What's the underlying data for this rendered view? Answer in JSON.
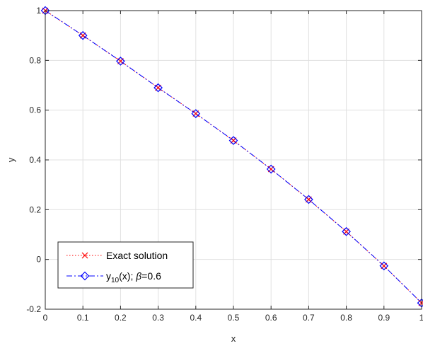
{
  "chart_data": {
    "type": "line",
    "title": "",
    "xlabel": "x",
    "ylabel": "y",
    "xlim": [
      0,
      1
    ],
    "ylim": [
      -0.2,
      1
    ],
    "grid": true,
    "legend_position": "bottom-left",
    "x_ticks": [
      0,
      0.1,
      0.2,
      0.3,
      0.4,
      0.5,
      0.6,
      0.7,
      0.8,
      0.9,
      1
    ],
    "x_tick_labels": [
      "0",
      "0.1",
      "0.2",
      "0.3",
      "0.4",
      "0.5",
      "0.6",
      "0.7",
      "0.8",
      "0.9",
      "1"
    ],
    "y_ticks": [
      -0.2,
      0,
      0.2,
      0.4,
      0.6,
      0.8,
      1
    ],
    "y_tick_labels": [
      "-0.2",
      "0",
      "0.2",
      "0.4",
      "0.6",
      "0.8",
      "1"
    ],
    "x": [
      0,
      0.1,
      0.2,
      0.3,
      0.4,
      0.5,
      0.6,
      0.7,
      0.8,
      0.9,
      1
    ],
    "series": [
      {
        "name": "Exact solution",
        "color": "#ff0000",
        "line_style": "dotted",
        "marker": "x",
        "values": [
          1.0,
          0.9,
          0.797,
          0.69,
          0.586,
          0.478,
          0.363,
          0.241,
          0.112,
          -0.026,
          -0.175
        ]
      },
      {
        "name": "y10(x); β=0.6",
        "color": "#0000ff",
        "line_style": "dash-dot",
        "marker": "diamond",
        "values": [
          1.0,
          0.9,
          0.797,
          0.69,
          0.586,
          0.478,
          0.363,
          0.241,
          0.112,
          -0.026,
          -0.175
        ]
      }
    ],
    "legend": {
      "entry1": "Exact solution",
      "entry2_base": "y",
      "entry2_sub": "10",
      "entry2_rest": "(x); ",
      "entry2_beta": "β",
      "entry2_value": "=0.6"
    }
  }
}
